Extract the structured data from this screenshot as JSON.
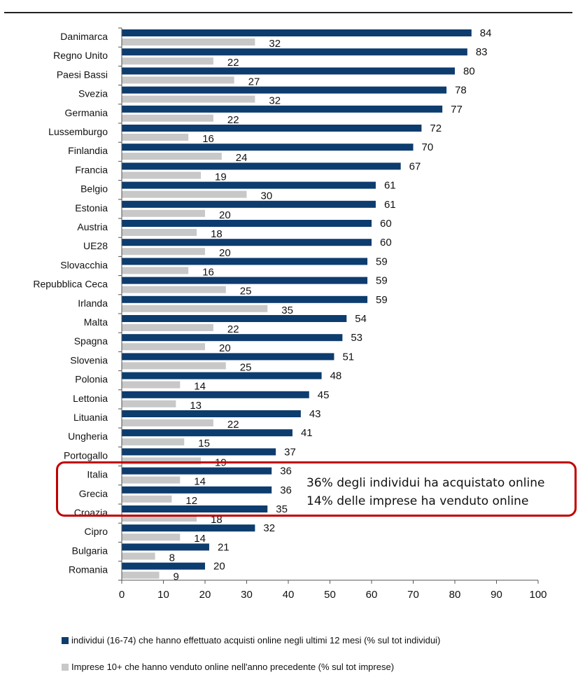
{
  "chart_data": {
    "type": "bar",
    "orientation": "horizontal",
    "categories": [
      "Danimarca",
      "Regno Unito",
      "Paesi Bassi",
      "Svezia",
      "Germania",
      "Lussemburgo",
      "Finlandia",
      "Francia",
      "Belgio",
      "Estonia",
      "Austria",
      "UE28",
      "Slovacchia",
      "Repubblica Ceca",
      "Irlanda",
      "Malta",
      "Spagna",
      "Slovenia",
      "Polonia",
      "Lettonia",
      "Lituania",
      "Ungheria",
      "Portogallo",
      "Italia",
      "Grecia",
      "Croazia",
      "Cipro",
      "Bulgaria",
      "Romania"
    ],
    "series": [
      {
        "name": "individui (16-74) che hanno effettuato acquisti online negli ultimi 12 mesi (% sul tot individui)",
        "color": "#0d3c6e",
        "values": [
          84,
          83,
          80,
          78,
          77,
          72,
          70,
          67,
          61,
          61,
          60,
          60,
          59,
          59,
          59,
          54,
          53,
          51,
          48,
          45,
          43,
          41,
          37,
          36,
          36,
          35,
          32,
          21,
          20
        ]
      },
      {
        "name": "Imprese 10+ che hanno venduto online nell'anno precedente (% sul tot imprese)",
        "color": "#c8c8c8",
        "values": [
          32,
          22,
          27,
          32,
          22,
          16,
          24,
          19,
          30,
          20,
          18,
          20,
          16,
          25,
          35,
          22,
          20,
          25,
          14,
          13,
          22,
          15,
          19,
          14,
          12,
          18,
          14,
          8,
          9
        ]
      }
    ],
    "xlim": [
      0,
      100
    ],
    "xticks": [
      0,
      10,
      20,
      30,
      40,
      50,
      60,
      70,
      80,
      90,
      100
    ],
    "grid": false,
    "legend_position": "bottom"
  },
  "callout": {
    "line1": "36% degli individui ha acquistato online",
    "line2": "14% delle imprese ha venduto online",
    "border_color": "#c00000"
  }
}
